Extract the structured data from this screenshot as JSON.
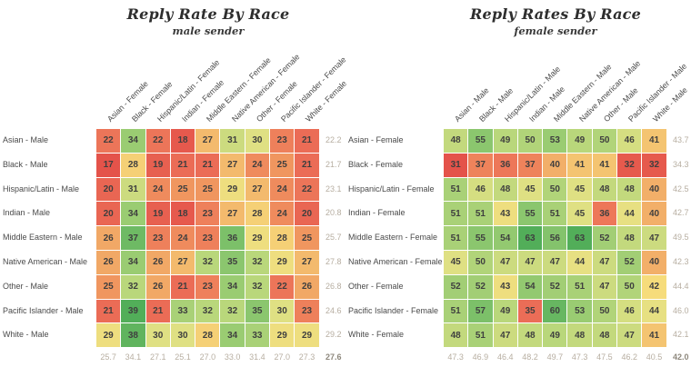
{
  "chart_data": [
    {
      "type": "heatmap",
      "title": "Reply Rate By Race",
      "subtitle": "male sender",
      "columns": [
        "Asian - Female",
        "Black - Female",
        "Hispanic/Latin - Female",
        "Indian - Female",
        "Middle Eastern - Female",
        "Native American - Female",
        "Other - Female",
        "Pacific Islander - Female",
        "White - Female"
      ],
      "rows": [
        "Asian - Male",
        "Black - Male",
        "Hispanic/Latin - Male",
        "Indian - Male",
        "Middle Eastern - Male",
        "Native American - Male",
        "Other - Male",
        "Pacific Islander - Male",
        "White - Male"
      ],
      "values": [
        [
          22,
          34,
          22,
          18,
          27,
          31,
          30,
          23,
          21
        ],
        [
          17,
          28,
          19,
          21,
          21,
          27,
          24,
          25,
          21
        ],
        [
          20,
          31,
          24,
          25,
          25,
          29,
          27,
          24,
          22
        ],
        [
          20,
          34,
          19,
          18,
          23,
          27,
          28,
          24,
          20
        ],
        [
          26,
          37,
          23,
          24,
          23,
          36,
          29,
          28,
          25
        ],
        [
          26,
          34,
          26,
          27,
          32,
          35,
          32,
          29,
          27
        ],
        [
          25,
          32,
          26,
          21,
          23,
          34,
          32,
          22,
          26
        ],
        [
          21,
          39,
          21,
          33,
          32,
          32,
          35,
          30,
          23
        ],
        [
          29,
          38,
          30,
          30,
          28,
          34,
          33,
          29,
          29
        ]
      ],
      "row_averages": [
        "22.2",
        "21.7",
        "23.1",
        "20.8",
        "25.7",
        "27.8",
        "26.8",
        "24.6",
        "29.2"
      ],
      "col_averages": [
        "25.7",
        "34.1",
        "27.1",
        "25.1",
        "27.0",
        "33.0",
        "31.4",
        "27.0",
        "27.3"
      ],
      "overall_average": "27.6",
      "color_scale": {
        "min": 17,
        "center": 28.5,
        "max": 39
      }
    },
    {
      "type": "heatmap",
      "title": "Reply Rates By Race",
      "subtitle": "female sender",
      "columns": [
        "Asian - Male",
        "Black - Male",
        "Hispanic/Latin - Male",
        "Indian - Male",
        "Middle Eastern - Male",
        "Native American - Male",
        "Other - Male",
        "Pacific Islander - Male",
        "White - Male"
      ],
      "rows": [
        "Asian - Female",
        "Black - Female",
        "Hispanic/Latin - Female",
        "Indian - Female",
        "Middle Eastern - Female",
        "Native American - Female",
        "Other - Female",
        "Pacific Islander - Female",
        "White - Female"
      ],
      "values": [
        [
          48,
          55,
          49,
          50,
          53,
          49,
          50,
          46,
          41
        ],
        [
          31,
          37,
          36,
          37,
          40,
          41,
          41,
          32,
          32
        ],
        [
          51,
          46,
          48,
          45,
          50,
          45,
          48,
          48,
          40
        ],
        [
          51,
          51,
          43,
          55,
          51,
          45,
          36,
          44,
          40
        ],
        [
          51,
          55,
          54,
          63,
          56,
          63,
          52,
          48,
          47
        ],
        [
          45,
          50,
          47,
          47,
          47,
          44,
          47,
          52,
          40
        ],
        [
          52,
          52,
          43,
          54,
          52,
          51,
          47,
          50,
          42
        ],
        [
          51,
          57,
          49,
          35,
          60,
          53,
          50,
          46,
          44
        ],
        [
          48,
          51,
          47,
          48,
          49,
          48,
          48,
          47,
          41
        ]
      ],
      "row_averages": [
        "43.7",
        "34.3",
        "42.5",
        "42.7",
        "49.5",
        "42.3",
        "44.4",
        "46.0",
        "42.1"
      ],
      "col_averages": [
        "47.3",
        "46.9",
        "46.4",
        "48.2",
        "49.7",
        "47.3",
        "47.5",
        "46.2",
        "40.5"
      ],
      "overall_average": "42.0",
      "color_scale": {
        "min": 31,
        "center": 42,
        "max": 63
      }
    }
  ],
  "palette": {
    "stops": [
      [
        -1,
        "#e4534a"
      ],
      [
        -0.6,
        "#ec7058"
      ],
      [
        -0.3,
        "#f0975f"
      ],
      [
        -0.12,
        "#f3bc6e"
      ],
      [
        0,
        "#f6dc7b"
      ],
      [
        0.12,
        "#e3e184"
      ],
      [
        0.35,
        "#b6d67a"
      ],
      [
        0.65,
        "#86c46d"
      ],
      [
        1,
        "#52ae59"
      ]
    ],
    "cell_gap": "#ffffff"
  },
  "colors": {
    "cell_text": "#3f3f3f",
    "label_text": "#4a4a4a",
    "average_text": "#b7aea1",
    "overall_average_text": "#8d877c",
    "title_text": "#2e2e2e",
    "background": "#ffffff"
  }
}
